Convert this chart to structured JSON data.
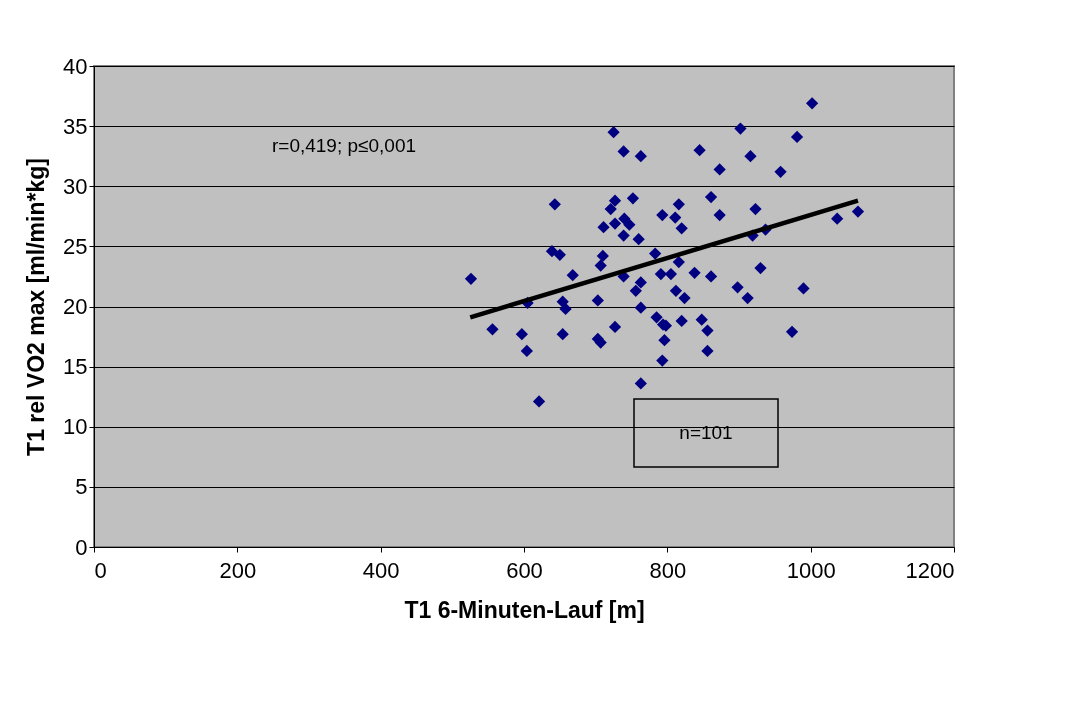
{
  "chart_data": {
    "type": "scatter",
    "xlabel": "T1 6-Minuten-Lauf [m]",
    "ylabel": "T1 rel VO2 max [ml/min*kg]",
    "xlim": [
      0,
      1200
    ],
    "xticks": [
      0,
      200,
      400,
      600,
      800,
      1000,
      1200
    ],
    "ylim": [
      0,
      40
    ],
    "yticks": [
      0,
      5,
      10,
      15,
      20,
      25,
      30,
      35,
      40
    ],
    "grid": "y",
    "annotations": [
      "r=0,419; p≤0,001",
      "n=101"
    ],
    "series": [
      {
        "color": "#000080",
        "marker": "diamond",
        "x": [
          1002,
          902,
          981,
          845,
          916,
          873,
          958,
          861,
          816,
          923,
          873,
          820,
          919,
          937,
          1037,
          1066,
          816,
          838,
          861,
          930,
          898,
          912,
          990,
          812,
          824,
          820,
          848,
          856,
          974,
          856,
          725,
          739,
          763,
          643,
          727,
          752,
          721,
          793,
          811,
          711,
          727,
          740,
          747,
          739,
          760,
          639,
          650,
          710,
          707,
          668,
          739,
          783,
          526,
          763,
          756,
          791,
          805,
          605,
          654,
          658,
          703,
          763,
          556,
          597,
          604,
          654,
          703,
          707,
          727,
          785,
          794,
          798,
          796,
          793,
          763,
          621
        ],
        "values": [
          36.9,
          34.8,
          34.1,
          33.0,
          32.5,
          31.4,
          31.2,
          29.1,
          28.5,
          28.1,
          27.6,
          26.5,
          25.9,
          26.4,
          27.3,
          27.9,
          23.7,
          22.8,
          22.5,
          23.2,
          21.6,
          20.7,
          21.5,
          21.3,
          20.7,
          18.8,
          18.9,
          18.0,
          17.9,
          16.3,
          34.5,
          32.9,
          32.5,
          28.5,
          28.8,
          29.0,
          28.1,
          27.6,
          27.4,
          26.6,
          26.9,
          27.3,
          26.8,
          25.9,
          25.6,
          24.6,
          24.3,
          24.2,
          23.4,
          22.6,
          22.5,
          24.4,
          22.3,
          22.0,
          21.3,
          22.7,
          22.7,
          20.3,
          20.4,
          19.8,
          20.5,
          19.9,
          18.1,
          17.7,
          16.3,
          17.7,
          17.3,
          17.0,
          18.3,
          19.1,
          18.5,
          18.4,
          17.2,
          15.5,
          13.6,
          12.1
        ]
      },
      {
        "type": "line",
        "color": "#000000",
        "x": [
          525,
          1066
        ],
        "values": [
          19.1,
          28.8
        ]
      }
    ]
  }
}
